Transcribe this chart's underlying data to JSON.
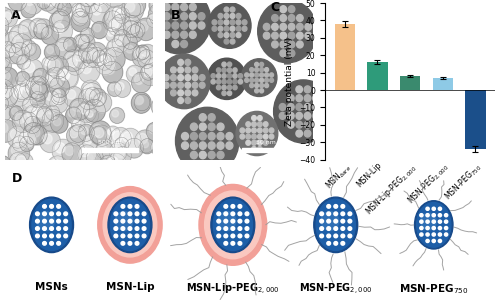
{
  "bar_values": [
    38,
    16,
    8,
    7,
    -34
  ],
  "bar_errors": [
    1.5,
    1.0,
    0.8,
    0.5,
    1.8
  ],
  "bar_colors": [
    "#F5C18A",
    "#2E9B7A",
    "#3A8A6E",
    "#8ECAE6",
    "#1B4F8A"
  ],
  "ylabel": "Zeta potential (mV)",
  "ylim": [
    -40,
    50
  ],
  "yticks": [
    -40,
    -30,
    -20,
    -10,
    0,
    10,
    20,
    30,
    40,
    50
  ],
  "panel_C_label": "C",
  "panel_D_label": "D",
  "panel_A_label": "A",
  "panel_B_label": "B",
  "msn_body_color": "#1E5FA8",
  "msn_outer_color": "#174A8A",
  "msn_dot_color": "#FFFFFF",
  "msn_lip_outer": "#F2A098",
  "msn_lip_inner": "#FAC8C0",
  "peg_color": "#999999",
  "label_fontsize": 7,
  "axis_fontsize": 6.5,
  "panel_fontsize": 9,
  "background_color": "#FFFFFF",
  "sem_bg": "#909090",
  "tem_bg": "#404040"
}
